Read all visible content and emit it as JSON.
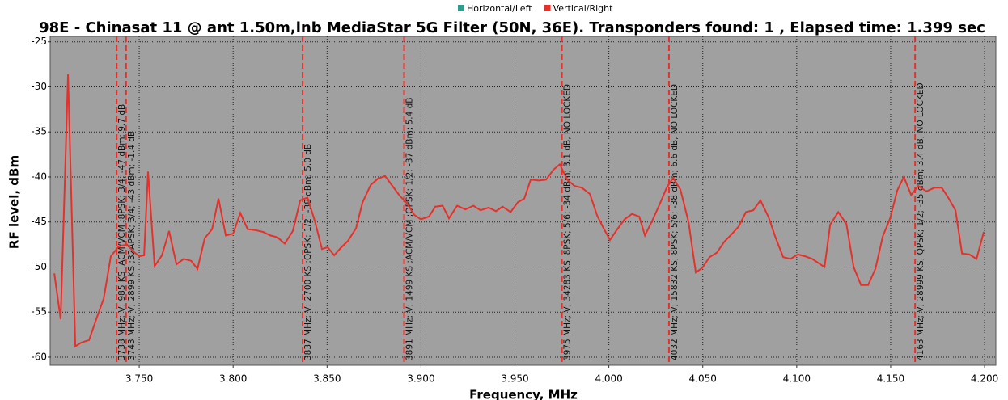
{
  "chart_data": {
    "type": "line",
    "title": "98E - Chinasat 11 @ ant 1.50m,lnb MediaStar 5G Filter (50N, 36E). Transponders found: 1 , Elapsed time: 1.399 sec",
    "x_label": "Frequency, MHz",
    "y_label": "RF level, dBm",
    "legend": [
      {
        "name": "Horizontal/Left",
        "color": "#2e9c91"
      },
      {
        "name": "Vertical/Right",
        "color": "#e8302a"
      }
    ],
    "xlim": [
      3.7026,
      4.206
    ],
    "ylim": [
      -60.9,
      -24.4
    ],
    "xticks": [
      {
        "value": 3.75,
        "label": "3.750"
      },
      {
        "value": 3.8,
        "label": "3.800"
      },
      {
        "value": 3.85,
        "label": "3.850"
      },
      {
        "value": 3.9,
        "label": "3.900"
      },
      {
        "value": 3.95,
        "label": "3.950"
      },
      {
        "value": 4.0,
        "label": "4.000"
      },
      {
        "value": 4.05,
        "label": "4.050"
      },
      {
        "value": 4.1,
        "label": "4.100"
      },
      {
        "value": 4.15,
        "label": "4.150"
      },
      {
        "value": 4.2,
        "label": "4.200"
      }
    ],
    "yticks": [
      -60,
      -55,
      -50,
      -45,
      -40,
      -35,
      -30,
      -25
    ],
    "grid": true,
    "series": [
      {
        "name": "Vertical/Right",
        "color": "#e8302a",
        "x": [
          3.7048,
          3.7082,
          3.7121,
          3.716,
          3.719,
          3.7233,
          3.7276,
          3.7311,
          3.7349,
          3.7392,
          3.7435,
          3.747,
          3.75,
          3.7526,
          3.7547,
          3.7582,
          3.7621,
          3.7659,
          3.7698,
          3.7737,
          3.7776,
          3.781,
          3.7849,
          3.7888,
          3.7922,
          3.7961,
          3.8,
          3.8038,
          3.8077,
          3.8116,
          3.8159,
          3.8198,
          3.8236,
          3.8275,
          3.8318,
          3.8357,
          3.8396,
          3.8435,
          3.8473,
          3.8503,
          3.8538,
          3.8572,
          3.8611,
          3.8654,
          3.8689,
          3.8732,
          3.877,
          3.8809,
          3.8848,
          3.8887,
          3.8925,
          3.8964,
          3.8999,
          3.9042,
          3.9076,
          3.9115,
          3.9149,
          3.9192,
          3.9236,
          3.9279,
          3.9317,
          3.936,
          3.9399,
          3.9434,
          3.9477,
          3.9516,
          3.955,
          3.9584,
          3.9627,
          3.9666,
          3.9705,
          3.9739,
          3.9778,
          3.9817,
          3.9856,
          3.9899,
          3.9938,
          3.9972,
          4.0006,
          4.0045,
          4.0084,
          4.0123,
          4.0162,
          4.0192,
          4.023,
          4.0269,
          4.0308,
          4.0342,
          4.0381,
          4.0424,
          4.0463,
          4.0497,
          4.0536,
          4.0575,
          4.0614,
          4.0652,
          4.0691,
          4.073,
          4.0769,
          4.0807,
          4.0851,
          4.0885,
          4.0928,
          4.0967,
          4.1006,
          4.1044,
          4.1083,
          4.1148,
          4.1178,
          4.1221,
          4.1264,
          4.1303,
          4.1342,
          4.138,
          4.1419,
          4.1458,
          4.1497,
          4.1535,
          4.157,
          4.1609,
          4.1647,
          4.169,
          4.1733,
          4.1772,
          4.1807,
          4.1845,
          4.188,
          4.1919,
          4.1957,
          4.1996
        ],
        "values": [
          -50.7,
          -55.8,
          -28.6,
          -58.8,
          -58.4,
          -58.1,
          -55.5,
          -53.5,
          -48.8,
          -47.7,
          -47.5,
          -48.3,
          -48.8,
          -48.7,
          -39.4,
          -49.9,
          -48.7,
          -46.0,
          -49.7,
          -49.1,
          -49.3,
          -50.2,
          -46.8,
          -45.8,
          -42.4,
          -46.5,
          -46.3,
          -44.0,
          -45.8,
          -45.9,
          -46.1,
          -46.5,
          -46.7,
          -47.4,
          -46.0,
          -42.6,
          -42.3,
          -44.9,
          -48.0,
          -47.8,
          -48.7,
          -47.9,
          -47.1,
          -45.7,
          -42.8,
          -40.9,
          -40.2,
          -39.9,
          -41.0,
          -42.1,
          -42.9,
          -44.2,
          -44.7,
          -44.4,
          -43.3,
          -43.2,
          -44.6,
          -43.2,
          -43.6,
          -43.2,
          -43.7,
          -43.4,
          -43.8,
          -43.3,
          -43.9,
          -42.8,
          -42.4,
          -40.3,
          -40.4,
          -40.3,
          -39.2,
          -38.6,
          -40.3,
          -41.0,
          -41.2,
          -41.9,
          -44.3,
          -45.7,
          -47.0,
          -45.8,
          -44.7,
          -44.1,
          -44.4,
          -46.5,
          -44.9,
          -43.1,
          -41.2,
          -40.1,
          -41.4,
          -45.0,
          -50.6,
          -50.1,
          -48.9,
          -48.4,
          -47.2,
          -46.4,
          -45.5,
          -43.9,
          -43.7,
          -42.6,
          -44.5,
          -46.6,
          -48.9,
          -49.1,
          -48.6,
          -48.8,
          -49.1,
          -50.0,
          -45.3,
          -43.9,
          -45.2,
          -50.0,
          -52.0,
          -52.0,
          -50.2,
          -46.6,
          -44.6,
          -41.5,
          -40.0,
          -42.0,
          -41.0,
          -41.6,
          -41.2,
          -41.2,
          -42.3,
          -43.7,
          -48.5,
          -48.6,
          -49.1,
          -46.1
        ]
      }
    ],
    "markers": [
      {
        "x": 3.738,
        "label": "3738 MHz; V; 985 KS ;ACM/VCM ;8PSK; 3/4; -47 dBm; 9.7 dB"
      },
      {
        "x": 3.743,
        "label": "3743 MHz; V; 2899 KS ;32APSK; 3/4; -43 dBm; -1.4 dB"
      },
      {
        "x": 3.837,
        "label": "3837 MHz; V; 2700 KS ;QPSK; 1/2; -38 dBm; 5.0 dB"
      },
      {
        "x": 3.891,
        "label": "3891 MHz; V; 1499 KS ;ACM/VCM ;QPSK; 1/2; -37 dBm; 5.4 dB"
      },
      {
        "x": 3.975,
        "label": "3975 MHz; V; 34283 KS; 8PSK; 5/6; -34 dBm; 3.1 dB, NO LOCKED"
      },
      {
        "x": 4.032,
        "label": "4032 MHz; V; 15832 KS; 8PSK; 5/6; -38 dBm; 6.6 dB, NO LOCKED"
      },
      {
        "x": 4.163,
        "label": "4163 MHz; V; 28999 KS; QPSK; 1/2; -35 dBm; 3.4 dB, NO LOCKED"
      }
    ],
    "marker_color": "#e8302a"
  }
}
